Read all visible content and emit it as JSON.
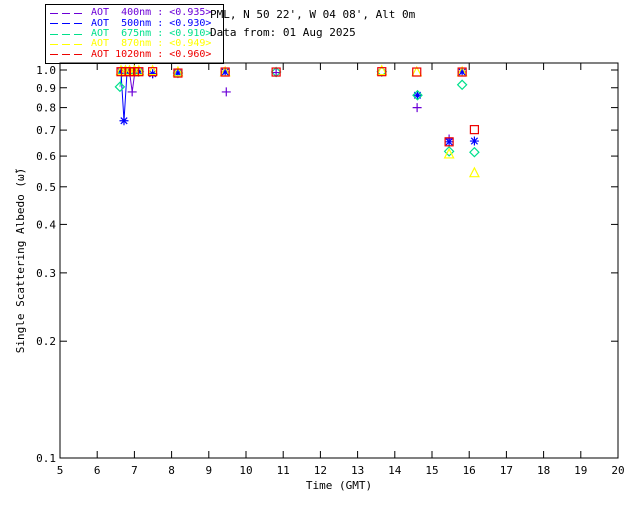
{
  "header": {
    "title": "PML, N 50 22', W 04 08', Alt 0m",
    "subtitle": "Data from: 01 Aug 2025"
  },
  "chart_data": {
    "type": "scatter",
    "title": "PML, N 50 22', W 04 08', Alt 0m",
    "subtitle": "Data from: 01 Aug 2025",
    "xlabel": "Time (GMT)",
    "ylabel": "Single Scattering Albedo (ω̃)",
    "x_range": [
      5,
      20
    ],
    "y_range": [
      0.1,
      1.0
    ],
    "y_scale": "log",
    "x_ticks": [
      5,
      6,
      7,
      8,
      9,
      10,
      11,
      12,
      13,
      14,
      15,
      16,
      17,
      18,
      19,
      20
    ],
    "y_ticks": [
      1.0,
      0.9,
      0.8,
      0.7,
      0.6,
      0.5,
      0.4,
      0.3,
      0.2,
      0.1
    ],
    "grid": false,
    "legend_position": "top-left-outside",
    "axis_color": "#000000",
    "background_color": "#ffffff",
    "series": [
      {
        "id": "aot-400nm",
        "legend_label": "AOT  400nm : <0.935>",
        "wavelength_nm": 400,
        "mean_ssa": 0.935,
        "color": "#6B00D7",
        "marker": "plus",
        "points": [
          [
            6.64,
            0.99
          ],
          [
            6.76,
            0.99
          ],
          [
            6.87,
            0.99
          ],
          [
            6.94,
            0.878
          ],
          [
            7.01,
            0.99
          ],
          [
            7.12,
            0.99
          ],
          [
            7.49,
            0.978
          ],
          [
            8.17,
            0.982
          ],
          [
            9.47,
            0.878
          ],
          [
            10.81,
            0.985
          ],
          [
            14.6,
            0.8
          ],
          [
            15.46,
            0.664
          ]
        ]
      },
      {
        "id": "aot-500nm",
        "legend_label": "AOT  500nm : <0.930>",
        "wavelength_nm": 500,
        "mean_ssa": 0.93,
        "color": "#0000FF",
        "marker": "asterisk",
        "points": [
          [
            6.64,
            0.99
          ],
          [
            6.72,
            0.74
          ],
          [
            6.8,
            0.99
          ],
          [
            6.87,
            0.99
          ],
          [
            7.0,
            0.99
          ],
          [
            7.12,
            0.99
          ],
          [
            7.49,
            0.978
          ],
          [
            8.17,
            0.982
          ],
          [
            9.44,
            0.988
          ],
          [
            14.61,
            0.861
          ],
          [
            15.46,
            0.653
          ],
          [
            15.81,
            0.988
          ],
          [
            16.14,
            0.656
          ]
        ]
      },
      {
        "id": "aot-675nm",
        "legend_label": "AOT  675nm : <0.910>",
        "wavelength_nm": 675,
        "mean_ssa": 0.91,
        "color": "#00E08C",
        "marker": "diamond",
        "points": [
          [
            6.61,
            0.905
          ],
          [
            6.67,
            0.99
          ],
          [
            6.87,
            0.99
          ],
          [
            7.12,
            0.99
          ],
          [
            8.17,
            0.982
          ],
          [
            10.81,
            0.988
          ],
          [
            13.65,
            0.99
          ],
          [
            14.61,
            0.861
          ],
          [
            15.46,
            0.617
          ],
          [
            15.81,
            0.916
          ],
          [
            16.14,
            0.614
          ]
        ]
      },
      {
        "id": "aot-870nm",
        "legend_label": "AOT  870nm : <0.949>",
        "wavelength_nm": 870,
        "mean_ssa": 0.949,
        "color": "#FFFF00",
        "marker": "triangle",
        "points": [
          [
            6.64,
            0.995
          ],
          [
            6.76,
            0.995
          ],
          [
            6.87,
            0.995
          ],
          [
            7.0,
            0.995
          ],
          [
            7.12,
            0.995
          ],
          [
            7.49,
            0.995
          ],
          [
            8.17,
            0.988
          ],
          [
            9.44,
            0.988
          ],
          [
            13.65,
            0.995
          ],
          [
            14.59,
            0.988
          ],
          [
            15.46,
            0.607
          ],
          [
            15.81,
            0.988
          ],
          [
            16.14,
            0.543
          ]
        ]
      },
      {
        "id": "aot-1020nm",
        "legend_label": "AOT 1020nm : <0.960>",
        "wavelength_nm": 1020,
        "mean_ssa": 0.96,
        "color": "#EE0000",
        "marker": "square",
        "points": [
          [
            6.64,
            0.99
          ],
          [
            6.76,
            0.99
          ],
          [
            6.87,
            0.99
          ],
          [
            7.0,
            0.99
          ],
          [
            7.12,
            0.99
          ],
          [
            7.49,
            0.99
          ],
          [
            8.17,
            0.982
          ],
          [
            9.44,
            0.988
          ],
          [
            10.81,
            0.988
          ],
          [
            13.65,
            0.99
          ],
          [
            14.59,
            0.988
          ],
          [
            15.46,
            0.653
          ],
          [
            15.81,
            0.988
          ],
          [
            16.14,
            0.702
          ]
        ]
      }
    ],
    "line_segments": [
      {
        "series": "aot-675nm",
        "color": "#00E08C",
        "points": [
          [
            6.61,
            0.905
          ],
          [
            6.67,
            0.985
          ]
        ]
      },
      {
        "series": "aot-500nm",
        "color": "#0000FF",
        "points": [
          [
            6.64,
            0.985
          ],
          [
            6.72,
            0.74
          ],
          [
            6.8,
            0.985
          ]
        ]
      },
      {
        "series": "aot-400nm",
        "color": "#6B00D7",
        "points": [
          [
            6.87,
            0.985
          ],
          [
            6.94,
            0.878
          ],
          [
            7.01,
            0.985
          ]
        ]
      }
    ]
  }
}
